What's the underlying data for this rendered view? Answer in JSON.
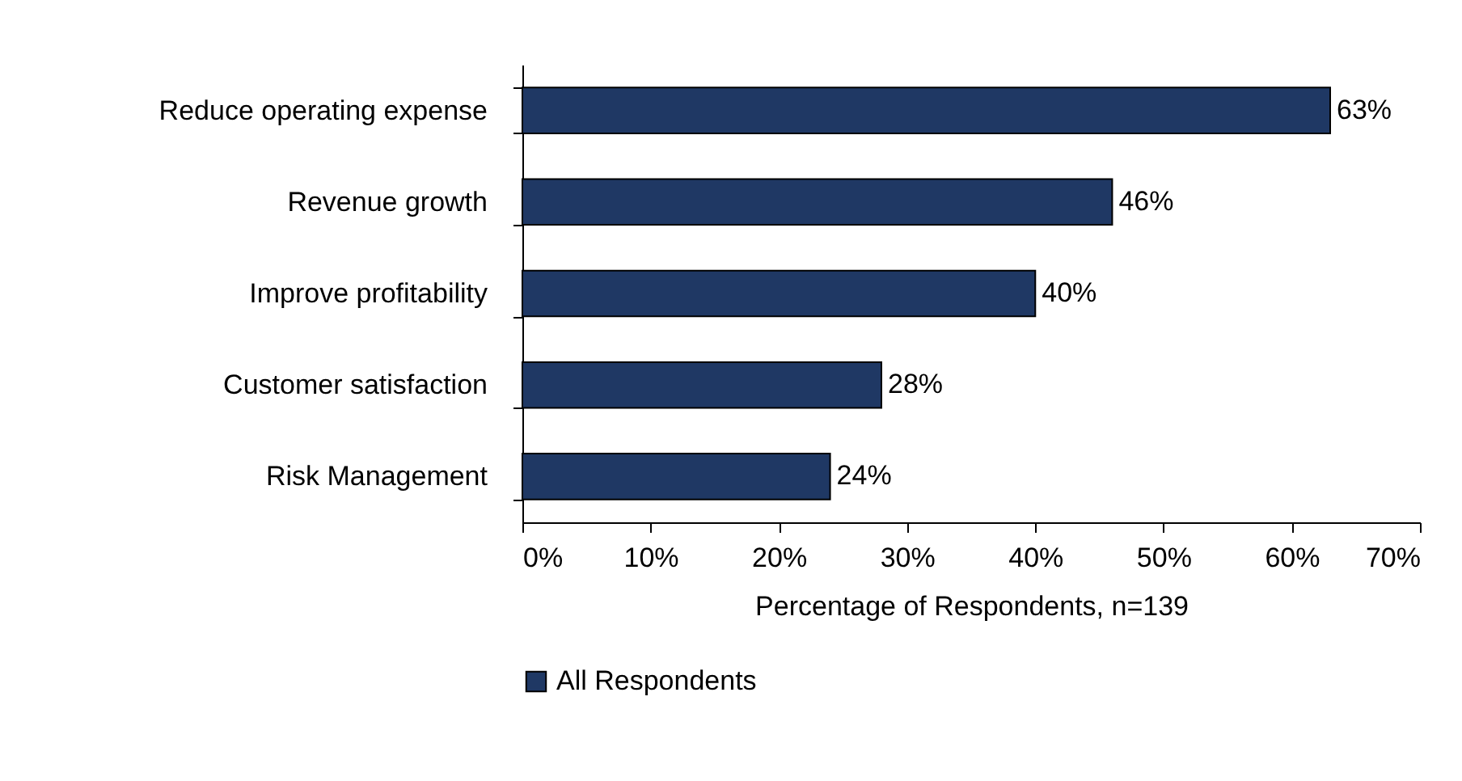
{
  "chart_data": {
    "type": "bar",
    "orientation": "horizontal",
    "xlabel": "Percentage of Respondents, n=139",
    "categories": [
      "Reduce operating expense",
      "Revenue growth",
      "Improve profitability",
      "Customer satisfaction",
      "Risk Management"
    ],
    "series": [
      {
        "name": "All Respondents",
        "color": "#1f3864",
        "values": [
          63,
          46,
          40,
          28,
          24
        ],
        "value_labels": [
          "63%",
          "46%",
          "40%",
          "28%",
          "24%"
        ]
      }
    ],
    "xlim": [
      0,
      70
    ],
    "xticks": [
      {
        "value": 0,
        "label": "0%"
      },
      {
        "value": 10,
        "label": "10%"
      },
      {
        "value": 20,
        "label": "20%"
      },
      {
        "value": 30,
        "label": "30%"
      },
      {
        "value": 40,
        "label": "40%"
      },
      {
        "value": 50,
        "label": "50%"
      },
      {
        "value": 60,
        "label": "60%"
      },
      {
        "value": 70,
        "label": "70%"
      }
    ],
    "grid": false,
    "legend": "bottom"
  }
}
